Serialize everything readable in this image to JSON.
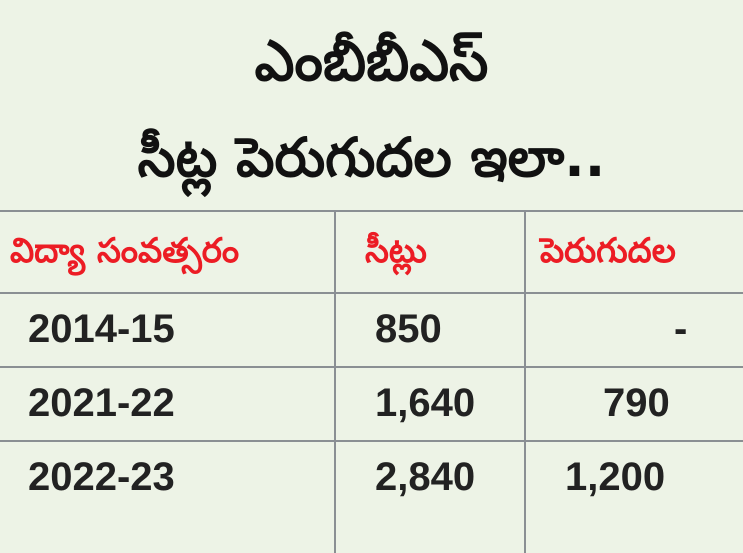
{
  "title": {
    "line1": "ఎంబీబీఎస్",
    "line2": "సీట్ల పెరుగుదల ఇలా.."
  },
  "table": {
    "headers": [
      "విద్యా సంవత్సరం",
      "సీట్లు",
      "పెరుగుదల"
    ],
    "rows": [
      [
        "2014-15",
        "850",
        "-"
      ],
      [
        "2021-22",
        "1,640",
        "790"
      ],
      [
        "2022-23",
        "2,840",
        "1,200"
      ]
    ]
  },
  "colors": {
    "background": "#edf3e6",
    "header_text": "#ec1c24",
    "body_text": "#222222",
    "grid_lines": "#8a8f93"
  }
}
